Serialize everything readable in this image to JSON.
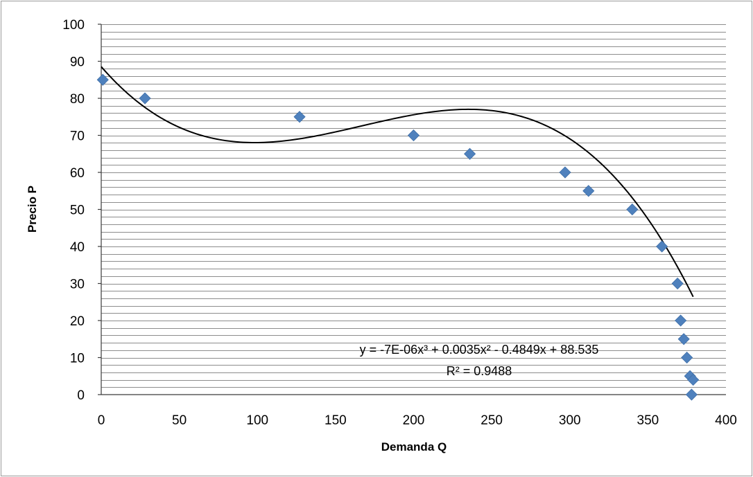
{
  "chart_data": {
    "type": "scatter",
    "xlabel": "Demanda Q",
    "ylabel": "Precio P",
    "xlim": [
      0,
      400
    ],
    "ylim": [
      0,
      100
    ],
    "xticks": [
      0,
      50,
      100,
      150,
      200,
      250,
      300,
      350,
      400
    ],
    "yticks": [
      0,
      10,
      20,
      30,
      40,
      50,
      60,
      70,
      80,
      90,
      100
    ],
    "minor_grid_step": 2,
    "grid": true,
    "marker": "diamond",
    "marker_color": "#4f81bd",
    "series": [
      {
        "points": [
          {
            "x": 1,
            "y": 85
          },
          {
            "x": 28,
            "y": 80
          },
          {
            "x": 127,
            "y": 75
          },
          {
            "x": 200,
            "y": 70
          },
          {
            "x": 236,
            "y": 65
          },
          {
            "x": 297,
            "y": 60
          },
          {
            "x": 312,
            "y": 55
          },
          {
            "x": 340,
            "y": 50
          },
          {
            "x": 359,
            "y": 40
          },
          {
            "x": 369,
            "y": 30
          },
          {
            "x": 371,
            "y": 20
          },
          {
            "x": 373,
            "y": 15
          },
          {
            "x": 375,
            "y": 10
          },
          {
            "x": 377,
            "y": 5
          },
          {
            "x": 379,
            "y": 4
          },
          {
            "x": 378,
            "y": 0
          }
        ]
      }
    ],
    "trendline": {
      "type": "polynomial",
      "degree": 3,
      "coefficients": [
        -7e-06,
        0.0035,
        -0.4849,
        88.535
      ],
      "x_range": [
        0,
        379
      ],
      "color": "#000000",
      "equation_label": "y = -7E-06x³ + 0.0035x² - 0.4849x + 88.535",
      "r2_label": "R² = 0.9488"
    }
  }
}
